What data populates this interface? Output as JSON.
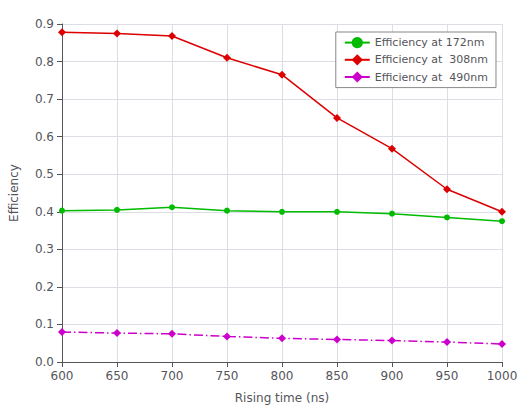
{
  "chart_data": {
    "type": "line",
    "xlabel": "Rising time (ns)",
    "ylabel": "Efficiency",
    "x": [
      600,
      650,
      700,
      750,
      800,
      850,
      900,
      950,
      1000
    ],
    "series": [
      {
        "name": "Efficiency at 172nm",
        "color": "#00bb00",
        "marker": "circle",
        "line_style": "solid",
        "values": [
          0.403,
          0.405,
          0.412,
          0.403,
          0.4,
          0.4,
          0.395,
          0.385,
          0.375
        ]
      },
      {
        "name": "Efficiency at  308nm",
        "color": "#dd0000",
        "marker": "diamond",
        "line_style": "solid",
        "values": [
          0.878,
          0.875,
          0.868,
          0.81,
          0.765,
          0.65,
          0.568,
          0.46,
          0.4
        ]
      },
      {
        "name": "Efficiency at  490nm",
        "color": "#cc00cc",
        "marker": "diamond",
        "line_style": "dashdot",
        "values": [
          0.08,
          0.077,
          0.075,
          0.068,
          0.063,
          0.06,
          0.057,
          0.053,
          0.048
        ]
      }
    ],
    "xlim": [
      600,
      1000
    ],
    "xticks": [
      600,
      650,
      700,
      750,
      800,
      850,
      900,
      950,
      1000
    ],
    "ylim": [
      0,
      0.9
    ],
    "yticks": [
      {
        "value": 0,
        "label": "0.0"
      },
      0.1,
      0.2,
      0.3,
      0.4,
      0.5,
      0.6,
      0.7,
      0.8,
      0.9
    ],
    "grid": true,
    "legend": "upper right"
  }
}
